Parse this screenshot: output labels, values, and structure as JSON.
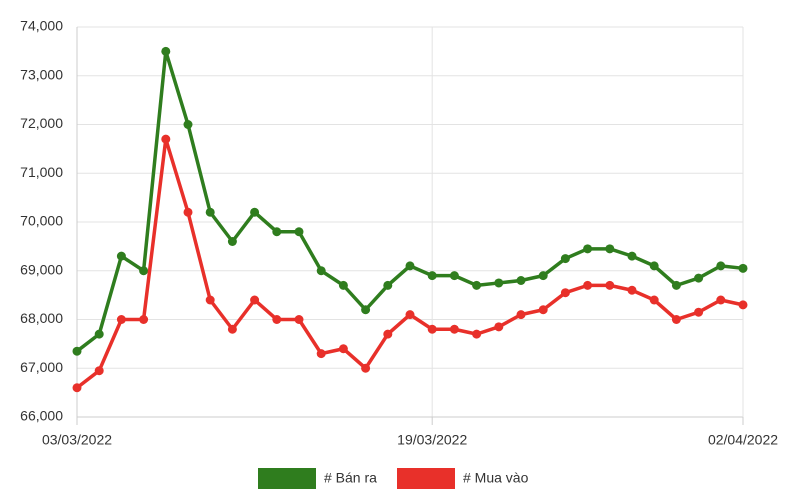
{
  "chart_data": {
    "type": "line",
    "categories": [
      "03/03/2022",
      null,
      null,
      null,
      null,
      null,
      null,
      null,
      null,
      null,
      null,
      null,
      null,
      null,
      null,
      null,
      "19/03/2022",
      null,
      null,
      null,
      null,
      null,
      null,
      null,
      null,
      null,
      null,
      null,
      null,
      null,
      "02/04/2022"
    ],
    "series": [
      {
        "name": "# Bán ra",
        "color": "#2f7d1e",
        "values": [
          67350,
          67700,
          69300,
          69000,
          73500,
          72000,
          70200,
          69600,
          70200,
          69800,
          69800,
          69000,
          68700,
          68200,
          68700,
          69100,
          68900,
          68900,
          68700,
          68750,
          68800,
          68900,
          69250,
          69450,
          69450,
          69300,
          69100,
          68700,
          68850,
          69100,
          69050
        ]
      },
      {
        "name": "# Mua vào",
        "color": "#e8302a",
        "values": [
          66600,
          66950,
          68000,
          68000,
          71700,
          70200,
          68400,
          67800,
          68400,
          68000,
          68000,
          67300,
          67400,
          67000,
          67700,
          68100,
          67800,
          67800,
          67700,
          67850,
          68100,
          68200,
          68550,
          68700,
          68700,
          68600,
          68400,
          68000,
          68150,
          68400,
          68300
        ]
      }
    ],
    "ylim": [
      66000,
      74000
    ],
    "yticks": [
      {
        "value": 66000,
        "label": "66,000"
      },
      {
        "value": 67000,
        "label": "67,000"
      },
      {
        "value": 68000,
        "label": "68,000"
      },
      {
        "value": 69000,
        "label": "69,000"
      },
      {
        "value": 70000,
        "label": "70,000"
      },
      {
        "value": 71000,
        "label": "71,000"
      },
      {
        "value": 72000,
        "label": "72,000"
      },
      {
        "value": 73000,
        "label": "73,000"
      },
      {
        "value": 74000,
        "label": "74,000"
      }
    ],
    "grid": true,
    "legend": "bottom"
  }
}
